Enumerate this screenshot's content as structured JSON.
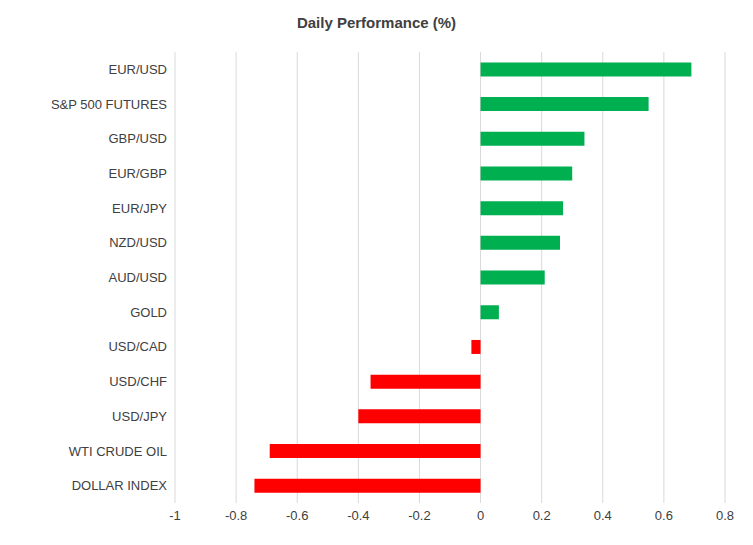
{
  "chart_data": {
    "type": "bar",
    "title": "Daily Performance (%)",
    "orientation": "horizontal",
    "categories": [
      "EUR/USD",
      "S&P 500 FUTURES",
      "GBP/USD",
      "EUR/GBP",
      "EUR/JPY",
      "NZD/USD",
      "AUD/USD",
      "GOLD",
      "USD/CAD",
      "USD/CHF",
      "USD/JPY",
      "WTI CRUDE OIL",
      "DOLLAR INDEX"
    ],
    "values": [
      0.69,
      0.55,
      0.34,
      0.3,
      0.27,
      0.26,
      0.21,
      0.06,
      -0.03,
      -0.36,
      -0.4,
      -0.69,
      -0.74
    ],
    "colors": [
      "#00B050",
      "#00B050",
      "#00B050",
      "#00B050",
      "#00B050",
      "#00B050",
      "#00B050",
      "#00B050",
      "#FF0000",
      "#FF0000",
      "#FF0000",
      "#FF0000",
      "#FF0000"
    ],
    "xlim": [
      -1,
      0.8
    ],
    "xticks": [
      -1,
      -0.8,
      -0.6,
      -0.4,
      -0.2,
      0,
      0.2,
      0.4,
      0.6,
      0.8
    ],
    "grid": true
  }
}
